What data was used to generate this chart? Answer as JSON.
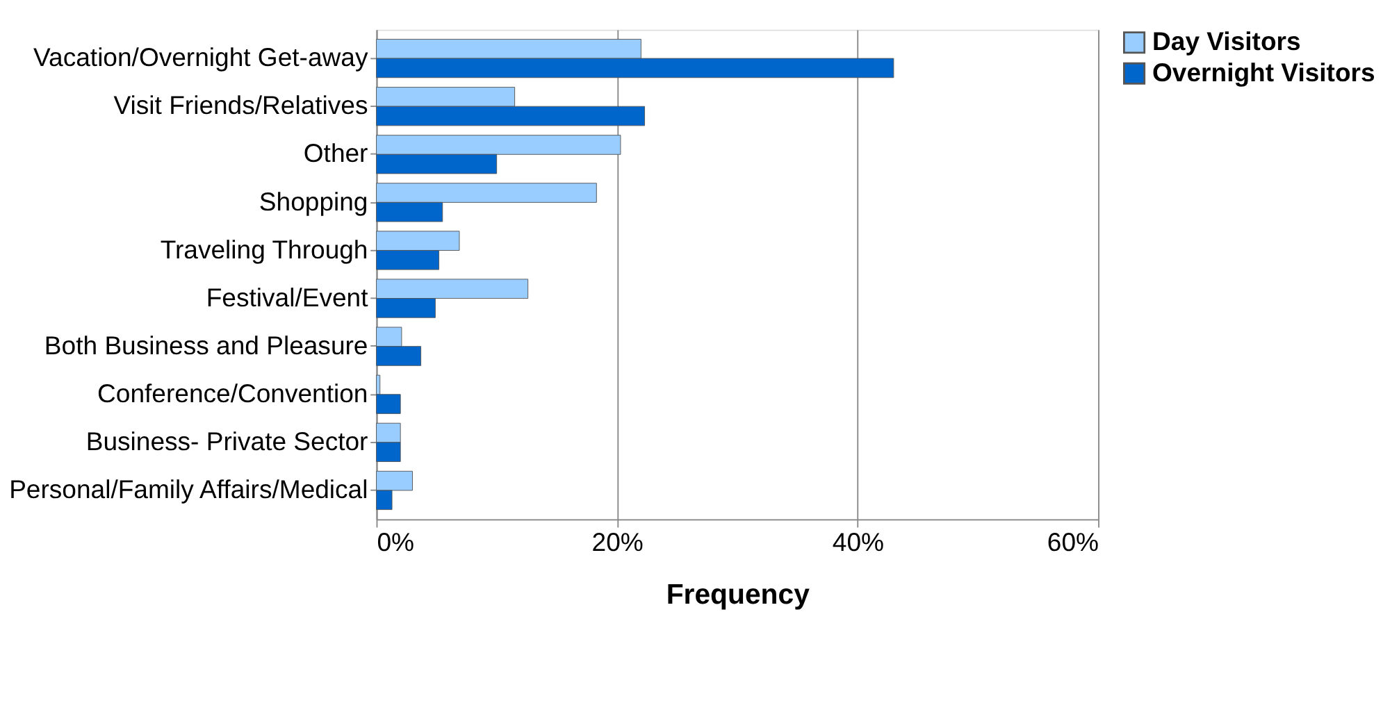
{
  "chart_data": {
    "type": "bar",
    "orientation": "horizontal",
    "xlabel": "Frequency",
    "categories": [
      "Vacation/Overnight Get-away",
      "Visit Friends/Relatives",
      "Other",
      "Shopping",
      "Traveling Through",
      "Festival/Event",
      "Both Business and Pleasure",
      "Conference/Convention",
      "Business- Private Sector",
      "Personal/Family Affairs/Medical"
    ],
    "series": [
      {
        "name": "Day Visitors",
        "color": "#99ccff",
        "values": [
          22,
          11.5,
          20.3,
          18.3,
          6.9,
          12.6,
          2.1,
          0.3,
          2,
          3
        ]
      },
      {
        "name": "Overnight Visitors",
        "color": "#0066cc",
        "values": [
          43,
          22.3,
          10,
          5.5,
          5.2,
          4.9,
          3.7,
          2,
          2,
          1.3
        ]
      }
    ],
    "xlim": [
      0,
      60
    ],
    "xticks": [
      {
        "value": 0,
        "label": "0%"
      },
      {
        "value": 20,
        "label": "20%"
      },
      {
        "value": 40,
        "label": "40%"
      },
      {
        "value": 60,
        "label": "60%"
      }
    ],
    "grid": "x",
    "legend": "right"
  }
}
